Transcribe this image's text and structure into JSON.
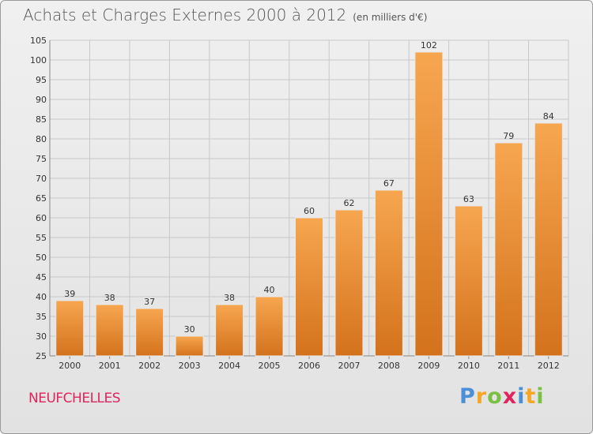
{
  "title": "Achats et Charges Externes 2000 à 2012",
  "subtitle": "(en milliers d'€)",
  "commune": "NEUFCHELLES",
  "logo": {
    "letters": [
      "P",
      "r",
      "o",
      "x",
      "i",
      "t",
      "i"
    ],
    "colors": [
      "#4a8fd8",
      "#f5a623",
      "#7ac143",
      "#e0245e",
      "#4a8fd8",
      "#f5a623",
      "#7ac143"
    ]
  },
  "colors": {
    "bar_top": "#f7a650",
    "bar_bottom": "#d4721c",
    "commune": "#e0245e",
    "grid": "#c8c8c8"
  },
  "chart_data": {
    "type": "bar",
    "title": "Achats et Charges Externes 2000 à 2012",
    "subtitle": "(en milliers d'€)",
    "categories": [
      "2000",
      "2001",
      "2002",
      "2003",
      "2004",
      "2005",
      "2006",
      "2007",
      "2008",
      "2009",
      "2010",
      "2011",
      "2012"
    ],
    "values": [
      39,
      38,
      37,
      30,
      38,
      40,
      60,
      62,
      67,
      102,
      63,
      79,
      84
    ],
    "ylim": [
      25,
      105
    ],
    "yticks": [
      25,
      30,
      35,
      40,
      45,
      50,
      55,
      60,
      65,
      70,
      75,
      80,
      85,
      90,
      95,
      100,
      105
    ],
    "grid": true,
    "data_labels": true
  }
}
